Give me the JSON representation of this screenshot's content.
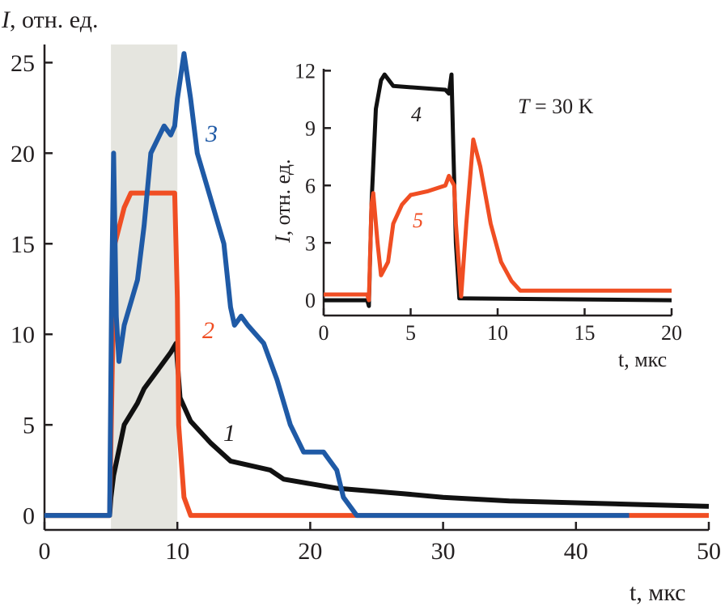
{
  "chart_data": [
    {
      "type": "line",
      "title": "",
      "ylabel": "I, отн. ед.",
      "ylabel_var": "I",
      "ylabel_unit": ", отн. ед.",
      "xlabel": "t, мкс",
      "xlabel_var": "t",
      "xlabel_unit": ", мкс",
      "xlim": [
        0,
        50
      ],
      "ylim": [
        -0.8,
        26
      ],
      "xticks": [
        0,
        10,
        20,
        30,
        40,
        50
      ],
      "yticks": [
        0,
        5,
        10,
        15,
        20,
        25
      ],
      "shaded_region": [
        5,
        10
      ],
      "shade_color": "#e5e5df",
      "series": [
        {
          "name": "1",
          "color": "#111111",
          "x": [
            0,
            4.9,
            5.0,
            5.2,
            6,
            7,
            7.5,
            8.5,
            9.5,
            9.9,
            10.0,
            10.2,
            11,
            12.5,
            14,
            17,
            18,
            22,
            27,
            30,
            35,
            45,
            50
          ],
          "y": [
            0,
            0,
            1.0,
            2.2,
            5,
            6.2,
            7,
            8,
            9,
            9.5,
            8.5,
            6.5,
            5.2,
            4,
            3,
            2.5,
            2,
            1.5,
            1.2,
            1,
            0.8,
            0.6,
            0.5
          ]
        },
        {
          "name": "2",
          "color": "#f04e23",
          "x": [
            0,
            4.9,
            5.1,
            5.3,
            6,
            6.5,
            9.8,
            10.0,
            10.1,
            10.5,
            11,
            50
          ],
          "y": [
            0,
            0,
            8,
            15,
            17,
            17.8,
            17.8,
            12,
            5,
            1,
            0,
            0
          ]
        },
        {
          "name": "3",
          "color": "#1f5aa6",
          "x": [
            0,
            4.9,
            5.05,
            5.2,
            5.4,
            5.6,
            6,
            7,
            7.5,
            8,
            9,
            9.5,
            9.8,
            10,
            10.5,
            11,
            11.5,
            12.5,
            13.5,
            14,
            14.3,
            14.8,
            15.3,
            16.5,
            17.5,
            18.5,
            19.5,
            21,
            22,
            22.5,
            23.5,
            44
          ],
          "y": [
            0,
            0,
            12,
            20,
            11,
            8.5,
            10.5,
            13,
            16,
            20,
            21.5,
            21,
            21.5,
            23,
            25.5,
            23,
            20,
            17.5,
            15,
            11.5,
            10.5,
            11,
            10.5,
            9.5,
            7.5,
            5,
            3.5,
            3.5,
            2.5,
            1,
            0,
            0
          ]
        }
      ],
      "curve_labels": [
        "1",
        "2",
        "3"
      ]
    },
    {
      "type": "line",
      "title": "",
      "annotation": "T = 30 K",
      "annotation_var": "T",
      "annotation_rest": " = 30 K",
      "ylabel": "I, отн. ед.",
      "ylabel_var": "I",
      "ylabel_unit": ", отн. ед.",
      "xlabel": "t, мкс",
      "xlabel_var": "t",
      "xlabel_unit": ", мкс",
      "xlim": [
        0,
        20
      ],
      "ylim": [
        -0.8,
        12.1
      ],
      "xticks": [
        0,
        5,
        10,
        15,
        20
      ],
      "yticks": [
        0,
        3,
        6,
        9,
        12
      ],
      "series": [
        {
          "name": "4",
          "color": "#111111",
          "x": [
            0,
            2.5,
            2.6,
            2.75,
            3.0,
            3.3,
            3.5,
            4,
            7,
            7.2,
            7.35,
            7.45,
            7.6,
            7.8,
            20
          ],
          "y": [
            0,
            0,
            -0.3,
            5,
            10,
            11.5,
            11.8,
            11.2,
            11,
            10.8,
            11.8,
            8,
            3,
            0.1,
            0
          ]
        },
        {
          "name": "5",
          "color": "#f04e23",
          "x": [
            0,
            2.5,
            2.6,
            2.75,
            2.85,
            3.1,
            3.3,
            3.7,
            4.0,
            4.5,
            5,
            6,
            7,
            7.2,
            7.5,
            7.6,
            7.9,
            8.2,
            8.6,
            9,
            9.6,
            10.2,
            10.8,
            11.3,
            20
          ],
          "y": [
            0.3,
            0.3,
            0,
            5,
            5.6,
            3,
            1.3,
            2,
            4,
            5,
            5.5,
            5.7,
            6,
            6.5,
            6,
            4,
            0.2,
            4,
            8.4,
            7,
            4,
            2,
            1,
            0.5,
            0.5
          ]
        }
      ],
      "curve_labels": [
        "4",
        "5"
      ]
    }
  ]
}
